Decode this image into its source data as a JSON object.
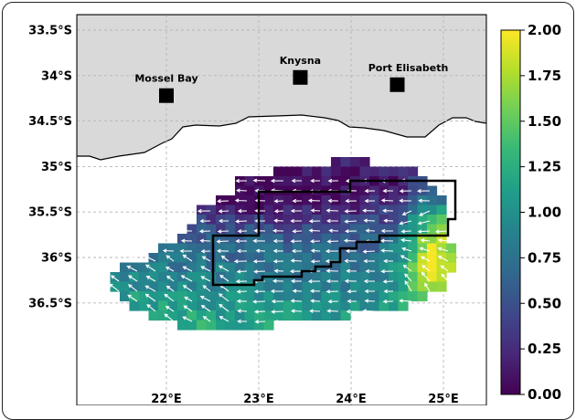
{
  "map": {
    "lat_ticks": [
      "33.5°S",
      "34°S",
      "34.5°S",
      "35°S",
      "35.5°S",
      "36°S",
      "36.5°S"
    ],
    "lon_ticks": [
      "22°E",
      "23°E",
      "24°E",
      "25°E"
    ],
    "places": [
      {
        "name": "Mossel Bay",
        "lon": 22.0,
        "lat": -34.22
      },
      {
        "name": "Knysna",
        "lon": 23.45,
        "lat": -34.02
      },
      {
        "name": "Port Elisabeth",
        "lon": 24.5,
        "lat": -34.1
      }
    ],
    "colors": {
      "land": "#d9d9d9",
      "grid": "#b5b5b5",
      "boundary": "#000000",
      "arrow": "#ffffff"
    }
  },
  "colorbar": {
    "ticks": [
      "2.00",
      "1.75",
      "1.50",
      "1.25",
      "1.00",
      "0.75",
      "0.50",
      "0.25",
      "0.00"
    ],
    "min": 0.0,
    "max": 2.0,
    "stops": [
      "#440154",
      "#482878",
      "#3e4989",
      "#31688e",
      "#26828e",
      "#1f9e89",
      "#35b779",
      "#6ece58",
      "#b5de2b",
      "#fde725"
    ]
  }
}
